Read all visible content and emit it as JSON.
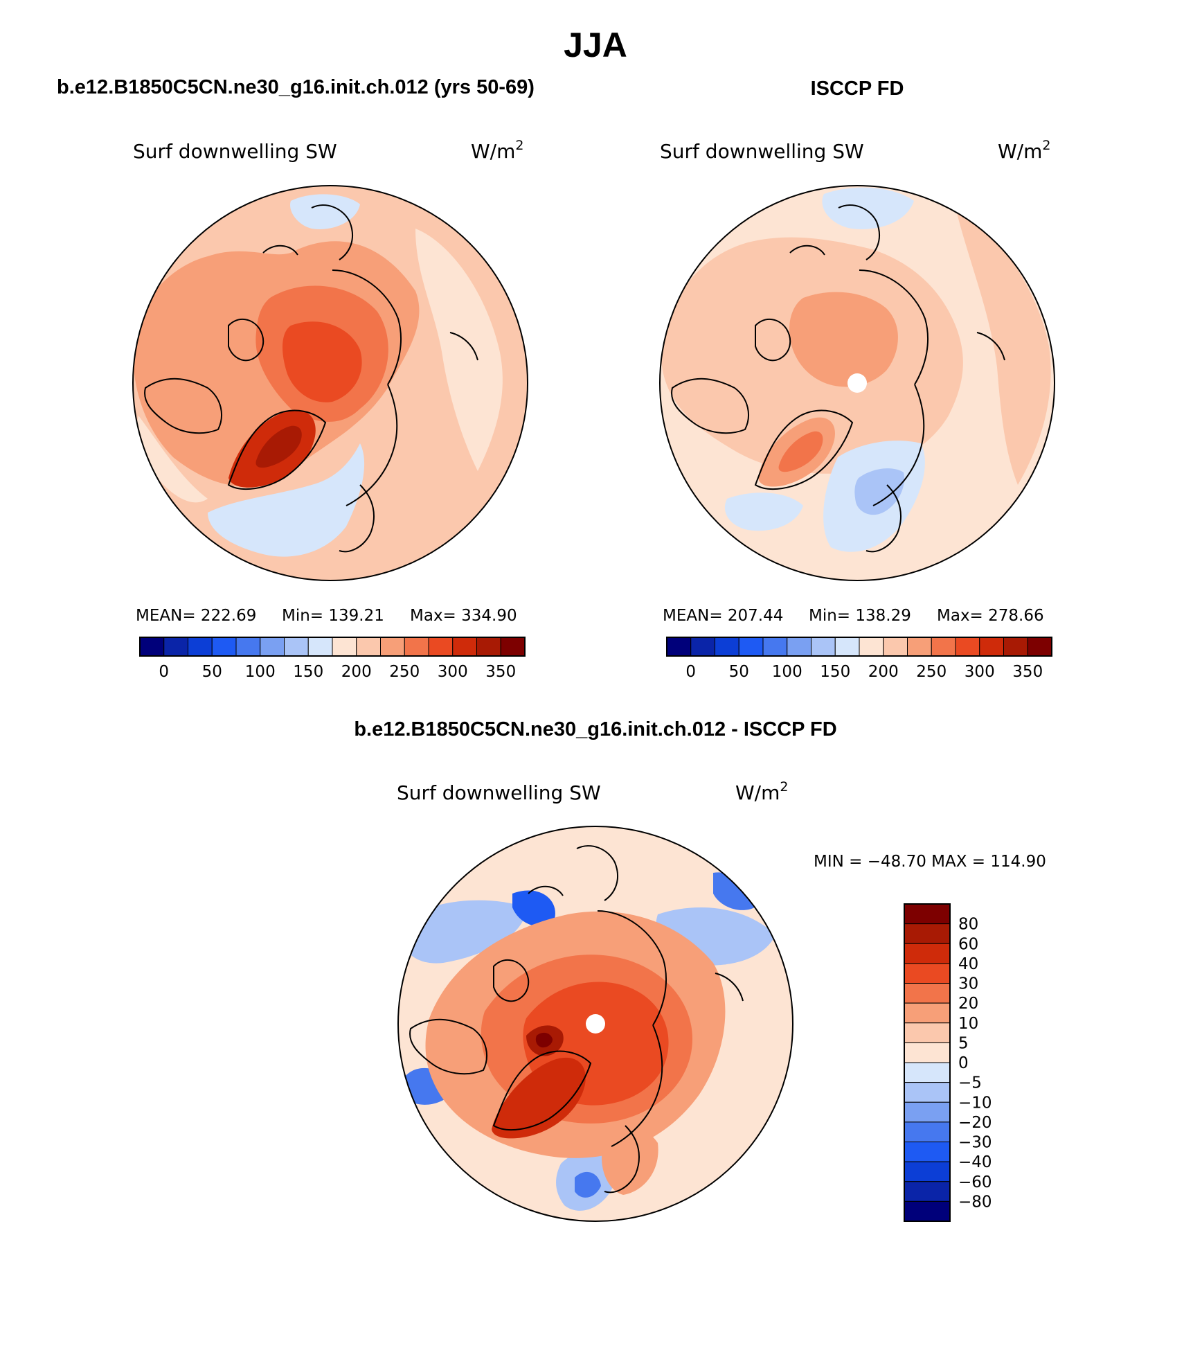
{
  "page": {
    "main_title": "JJA",
    "accent_colors": {
      "max": "#7d0000",
      "min": "#00007a",
      "neutral_pos": "#fde4d3",
      "neutral_neg": "#d6e6fb"
    }
  },
  "chart_data": [
    {
      "type": "heatmap",
      "projection": "north polar stereographic",
      "title": "b.e12.B1850C5CN.ne30_g16.init.ch.012 (yrs 50-69)",
      "variable_label": "Surf downwelling SW",
      "units_label": "W/m",
      "units_superscript": "2",
      "stats": {
        "mean": "MEAN= 222.69",
        "min": "Min= 139.21",
        "max": "Max= 334.90"
      },
      "colorbar_orientation": "horizontal",
      "colorbar_tick_labels": [
        "0",
        "50",
        "100",
        "150",
        "200",
        "250",
        "300",
        "350"
      ],
      "colorbar_colors": [
        "#00007a",
        "#0a24a8",
        "#0c3ed6",
        "#1e5af3",
        "#4678ef",
        "#7aa0f2",
        "#aac4f7",
        "#d6e6fb",
        "#fde4d3",
        "#fbc8ad",
        "#f79f78",
        "#f2744a",
        "#ea4a22",
        "#cf2b0a",
        "#a81a04",
        "#7d0000"
      ],
      "pole_gap": false
    },
    {
      "type": "heatmap",
      "projection": "north polar stereographic",
      "title": "ISCCP FD",
      "variable_label": "Surf downwelling SW",
      "units_label": "W/m",
      "units_superscript": "2",
      "stats": {
        "mean": "MEAN= 207.44",
        "min": "Min= 138.29",
        "max": "Max= 278.66"
      },
      "colorbar_orientation": "horizontal",
      "colorbar_tick_labels": [
        "0",
        "50",
        "100",
        "150",
        "200",
        "250",
        "300",
        "350"
      ],
      "colorbar_colors": [
        "#00007a",
        "#0a24a8",
        "#0c3ed6",
        "#1e5af3",
        "#4678ef",
        "#7aa0f2",
        "#aac4f7",
        "#d6e6fb",
        "#fde4d3",
        "#fbc8ad",
        "#f79f78",
        "#f2744a",
        "#ea4a22",
        "#cf2b0a",
        "#a81a04",
        "#7d0000"
      ],
      "pole_gap": true
    },
    {
      "type": "heatmap",
      "projection": "north polar stereographic",
      "title": "b.e12.B1850C5CN.ne30_g16.init.ch.012 - ISCCP FD",
      "variable_label": "Surf downwelling SW",
      "units_label": "W/m",
      "units_superscript": "2",
      "stats": {
        "minmax": "MIN = −48.70 MAX = 114.90"
      },
      "colorbar_orientation": "vertical",
      "colorbar_tick_labels": [
        "80",
        "60",
        "40",
        "30",
        "20",
        "10",
        "5",
        "0",
        "−5",
        "−10",
        "−20",
        "−30",
        "−40",
        "−60",
        "−80"
      ],
      "colorbar_colors": [
        "#7d0000",
        "#a81a04",
        "#cf2b0a",
        "#ea4a22",
        "#f2744a",
        "#f79f78",
        "#fbc8ad",
        "#fde4d3",
        "#d6e6fb",
        "#aac4f7",
        "#7aa0f2",
        "#4678ef",
        "#1e5af3",
        "#0c3ed6",
        "#0a24a8",
        "#00007a"
      ],
      "pole_gap": true
    }
  ]
}
